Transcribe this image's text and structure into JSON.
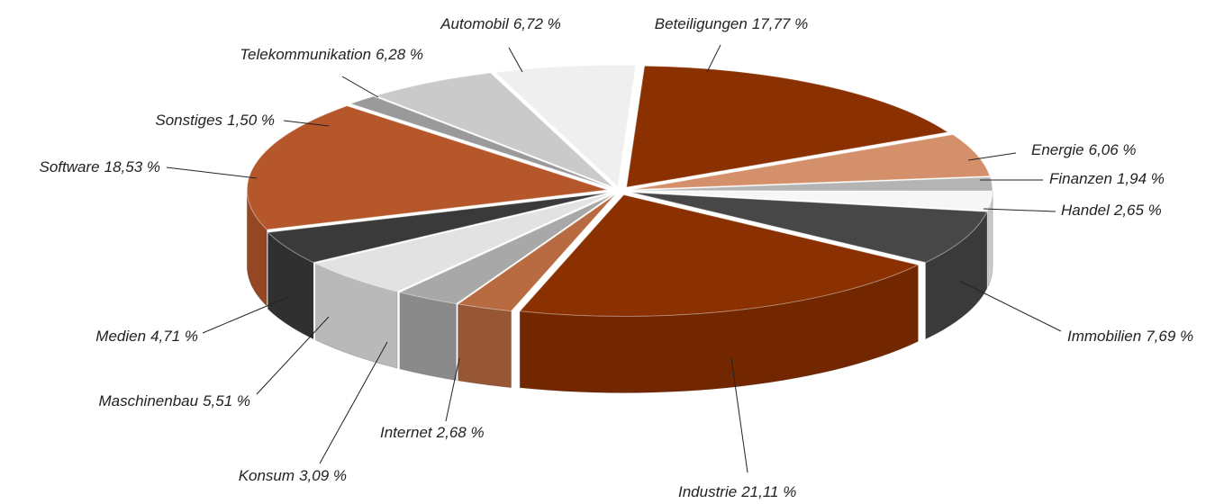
{
  "chart_data": {
    "type": "pie",
    "categories": [
      "Beteiligungen",
      "Energie",
      "Finanzen",
      "Handel",
      "Immobilien",
      "Industrie",
      "Internet",
      "Konsum",
      "Maschinenbau",
      "Medien",
      "Software",
      "Sonstiges",
      "Telekommunikation",
      "Automobil"
    ],
    "values": [
      17.77,
      6.06,
      1.94,
      2.65,
      7.69,
      21.11,
      2.68,
      3.09,
      5.51,
      4.71,
      18.53,
      1.5,
      6.28,
      6.72
    ],
    "value_labels": [
      "17,77 %",
      "6,06 %",
      "1,94 %",
      "2,65 %",
      "7,69 %",
      "21,11 %",
      "2,68 %",
      "3,09 %",
      "5,51 %",
      "4,71 %",
      "18,53 %",
      "1,50 %",
      "6,28 %",
      "6,72 %"
    ],
    "colors": [
      "#8b3000",
      "#d4906a",
      "#b4b4b4",
      "#f6f6f6",
      "#474747",
      "#8b3000",
      "#b86a40",
      "#a8a8a8",
      "#e2e2e2",
      "#3a3a3a",
      "#b5572a",
      "#9a9a9a",
      "#cacaca",
      "#efefef"
    ]
  }
}
